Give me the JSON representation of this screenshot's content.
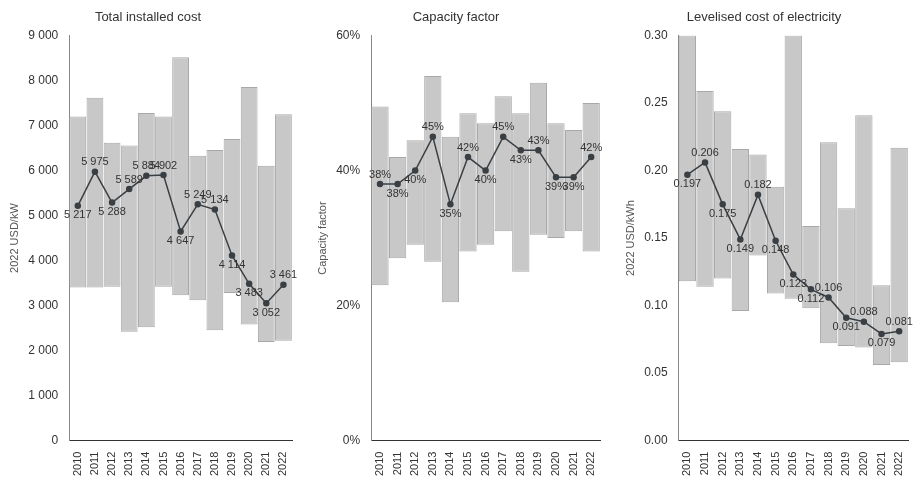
{
  "chart_data": [
    {
      "type": "bar",
      "title": "Total installed cost",
      "y_label": "2022 USD/kW",
      "categories": [
        "2010",
        "2011",
        "2012",
        "2013",
        "2014",
        "2015",
        "2016",
        "2017",
        "2018",
        "2019",
        "2020",
        "2021",
        "2022"
      ],
      "ylim": [
        0,
        9000
      ],
      "yticks": [
        0,
        {
          "value": 1000,
          "label": "1 000"
        },
        {
          "value": 2000,
          "label": "2 000"
        },
        {
          "value": 3000,
          "label": "3 000"
        },
        {
          "value": 4000,
          "label": "4 000"
        },
        {
          "value": 5000,
          "label": "5 000"
        },
        {
          "value": 6000,
          "label": "6 000"
        },
        {
          "value": 7000,
          "label": "7 000"
        },
        {
          "value": 8000,
          "label": "8 000"
        },
        {
          "value": 9000,
          "label": "9 000"
        }
      ],
      "grid": false,
      "data_labels": true,
      "series": [
        {
          "type": "bar",
          "color": "#c8c8c8",
          "values": [
            [
              3400,
              7200
            ],
            [
              3400,
              7620
            ],
            [
              3420,
              6620
            ],
            [
              2420,
              6560
            ],
            [
              2520,
              7280
            ],
            [
              3420,
              7200
            ],
            [
              3230,
              8520
            ],
            [
              3120,
              6330
            ],
            [
              2450,
              6460
            ],
            [
              3280,
              6700
            ],
            [
              2580,
              7860
            ],
            [
              2190,
              6110
            ],
            [
              2220,
              7250
            ]
          ]
        },
        {
          "type": "line",
          "color": "#3a3f44",
          "marker": "circle",
          "values": [
            5217,
            5975,
            5288,
            5589,
            5884,
            5902,
            4647,
            5249,
            5134,
            4114,
            3483,
            3052,
            3461
          ],
          "value_labels": [
            "5 217",
            "5 975",
            "5 288",
            "5 589",
            "5 884",
            "5 902",
            "4 647",
            "5 249",
            "5 134",
            "4 114",
            "3 483",
            "3 052",
            "3 461"
          ]
        }
      ]
    },
    {
      "type": "bar",
      "title": "Capacity factor",
      "y_label": "Capacity factor",
      "categories": [
        "2010",
        "2011",
        "2012",
        "2013",
        "2014",
        "2015",
        "2016",
        "2017",
        "2018",
        "2019",
        "2020",
        "2021",
        "2022"
      ],
      "ylim": [
        0,
        60
      ],
      "yticks": [
        {
          "value": 0,
          "label": "0%"
        },
        {
          "value": 20,
          "label": "20%"
        },
        {
          "value": 40,
          "label": "40%"
        },
        {
          "value": 60,
          "label": "60%"
        }
      ],
      "grid": false,
      "data_labels": true,
      "series": [
        {
          "type": "bar",
          "color": "#c8c8c8",
          "values": [
            [
              23,
              49.5
            ],
            [
              27,
              42
            ],
            [
              29,
              44.5
            ],
            [
              26.5,
              54
            ],
            [
              20.5,
              45
            ],
            [
              28,
              48.5
            ],
            [
              29,
              47
            ],
            [
              31,
              51
            ],
            [
              25,
              48.5
            ],
            [
              30.5,
              53
            ],
            [
              30,
              47
            ],
            [
              31,
              46
            ],
            [
              28,
              50
            ]
          ]
        },
        {
          "type": "line",
          "color": "#3a3f44",
          "marker": "circle",
          "values": [
            38,
            38,
            40,
            45,
            35,
            42,
            40,
            45,
            43,
            43,
            39,
            39,
            42
          ],
          "value_labels": [
            "38%",
            "38%",
            "40%",
            "45%",
            "35%",
            "42%",
            "40%",
            "45%",
            "43%",
            "43%",
            "39%",
            "39%",
            "42%"
          ]
        }
      ]
    },
    {
      "type": "bar",
      "title": "Levelised cost of electricity",
      "y_label": "2022 USD/kWh",
      "categories": [
        "2010",
        "2011",
        "2012",
        "2013",
        "2014",
        "2015",
        "2016",
        "2017",
        "2018",
        "2019",
        "2020",
        "2021",
        "2022"
      ],
      "ylim": [
        0,
        0.3
      ],
      "yticks": [
        {
          "value": 0,
          "label": "0.00"
        },
        {
          "value": 0.05,
          "label": "0.05"
        },
        {
          "value": 0.1,
          "label": "0.10"
        },
        {
          "value": 0.15,
          "label": "0.15"
        },
        {
          "value": 0.2,
          "label": "0.20"
        },
        {
          "value": 0.25,
          "label": "0.25"
        },
        {
          "value": 0.3,
          "label": "0.30"
        }
      ],
      "grid": false,
      "data_labels": true,
      "series": [
        {
          "type": "bar",
          "color": "#c8c8c8",
          "values": [
            [
              0.118,
              0.3
            ],
            [
              0.114,
              0.259
            ],
            [
              0.12,
              0.244
            ],
            [
              0.096,
              0.216
            ],
            [
              0.137,
              0.212
            ],
            [
              0.109,
              0.188
            ],
            [
              0.105,
              0.3
            ],
            [
              0.098,
              0.159
            ],
            [
              0.072,
              0.221
            ],
            [
              0.07,
              0.172
            ],
            [
              0.069,
              0.241
            ],
            [
              0.056,
              0.115
            ],
            [
              0.058,
              0.217
            ]
          ]
        },
        {
          "type": "line",
          "color": "#3a3f44",
          "marker": "circle",
          "values": [
            0.197,
            0.206,
            0.175,
            0.149,
            0.182,
            0.148,
            0.123,
            0.112,
            0.106,
            0.091,
            0.088,
            0.079,
            0.081
          ]
        }
      ]
    }
  ]
}
